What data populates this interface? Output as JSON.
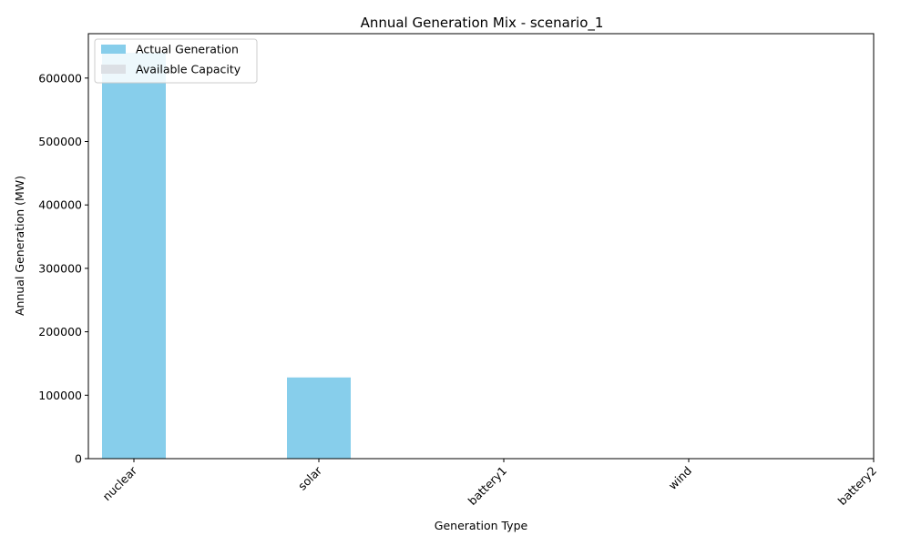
{
  "chart_data": {
    "type": "bar",
    "title": "Annual Generation Mix - scenario_1",
    "xlabel": "Generation Type",
    "ylabel": "Annual Generation (MW)",
    "categories": [
      "nuclear",
      "solar",
      "battery1",
      "wind",
      "battery2"
    ],
    "series": [
      {
        "name": "Actual Generation",
        "color": "#87CEEB",
        "values": [
          640000,
          128000,
          0,
          0,
          0
        ]
      },
      {
        "name": "Available Capacity",
        "color": "#DCE0E5",
        "values": [
          null,
          null,
          null,
          null,
          null
        ]
      }
    ],
    "ylim": [
      0,
      670000
    ],
    "yticks": [
      0,
      100000,
      200000,
      300000,
      400000,
      500000,
      600000
    ],
    "ytick_labels": [
      "0",
      "100000",
      "200000",
      "300000",
      "400000",
      "500000",
      "600000"
    ],
    "grid": false,
    "legend_position": "top-left",
    "xtick_rotation": 45
  }
}
